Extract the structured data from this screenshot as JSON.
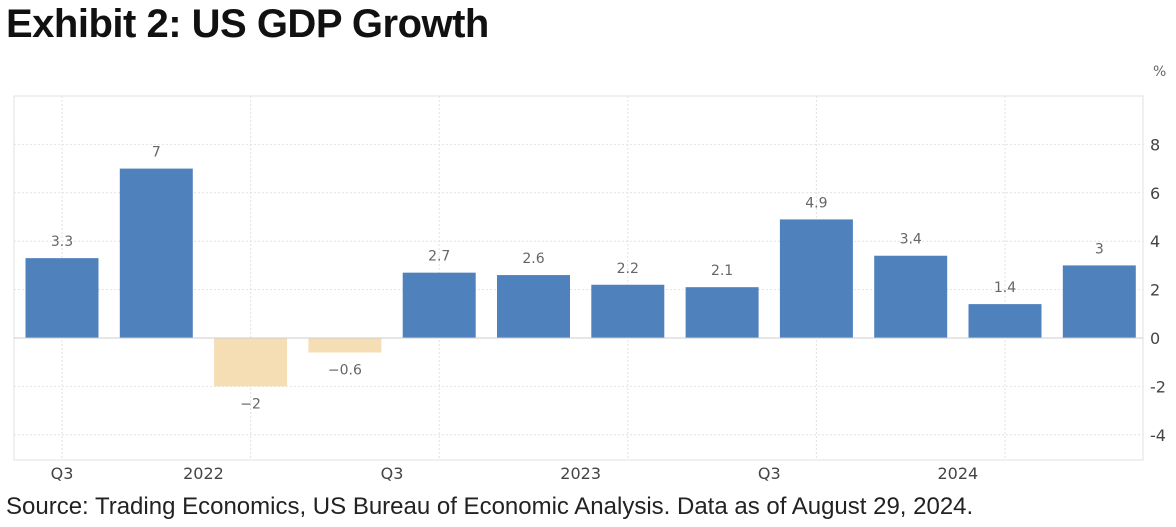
{
  "title": "Exhibit 2: US GDP Growth",
  "source": "Source: Trading Economics, US Bureau of Economic Analysis. Data as of August 29, 2024.",
  "chart_data": {
    "type": "bar",
    "title": "Exhibit 2: US GDP Growth",
    "ylabel": "%",
    "ylim": [
      -5,
      10
    ],
    "yticks": [
      8,
      6,
      4,
      2,
      0,
      -2,
      -4
    ],
    "ytick_labels": [
      "8",
      "6",
      "4",
      "2",
      "0",
      "-2",
      "-4"
    ],
    "grid": true,
    "x_tick_labels": [
      "Q3",
      "2022",
      "Q3",
      "2023",
      "Q3",
      "2024"
    ],
    "x_tick_positions": [
      0,
      2,
      4,
      6,
      8,
      10
    ],
    "values": [
      3.3,
      7,
      -2,
      -0.6,
      2.7,
      2.6,
      2.2,
      2.1,
      4.9,
      3.4,
      1.4,
      3
    ],
    "data_labels": [
      "3.3",
      "7",
      "−2",
      "−0.6",
      "2.7",
      "2.6",
      "2.2",
      "2.1",
      "4.9",
      "3.4",
      "1.4",
      "3"
    ],
    "colors": {
      "positive": "#4f81bd",
      "negative": "#f5deb3",
      "grid": "#e2e2e2",
      "axis": "#cccccc"
    }
  }
}
